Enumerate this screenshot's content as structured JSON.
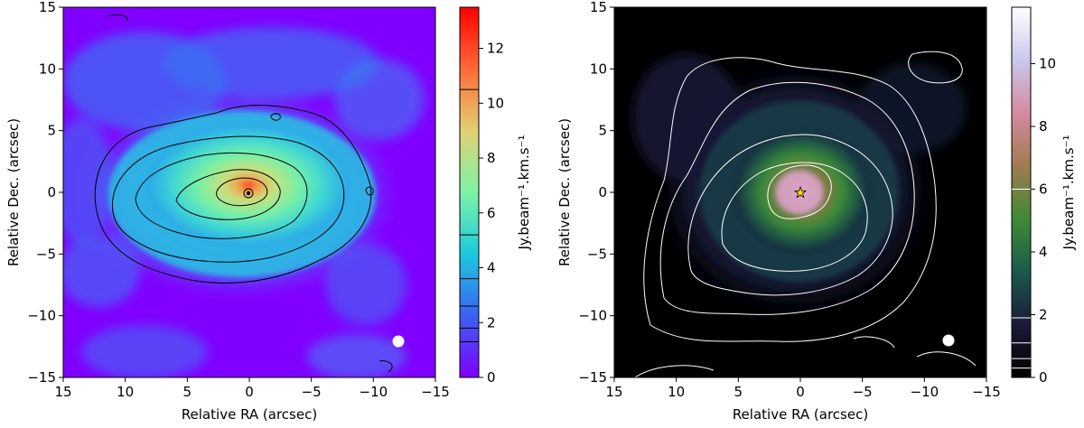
{
  "chart_data": [
    {
      "type": "heatmap",
      "xlabel": "Relative RA (arcsec)",
      "ylabel": "Relative Dec. (arcsec)",
      "xlim": [
        15,
        -15
      ],
      "ylim": [
        -15,
        15
      ],
      "x_ticks": [
        "15",
        "10",
        "5",
        "0",
        "−5",
        "−10",
        "−15"
      ],
      "y_ticks": [
        "−15",
        "−10",
        "−5",
        "0",
        "5",
        "10",
        "15"
      ],
      "x_tick_values": [
        15,
        10,
        5,
        0,
        -5,
        -10,
        -15
      ],
      "y_tick_values": [
        -15,
        -10,
        -5,
        0,
        5,
        10,
        15
      ],
      "colorbar": {
        "label": "Jy.beam⁻¹.km.s⁻¹",
        "range": [
          0,
          13.5
        ],
        "ticks": [
          "0",
          "2",
          "4",
          "6",
          "8",
          "10",
          "12"
        ],
        "tick_values": [
          0,
          2,
          4,
          6,
          8,
          10,
          12
        ],
        "contour_levels": [
          1.3,
          1.8,
          2.6,
          3.6,
          5.2,
          10.5
        ],
        "colormap": "rainbow",
        "colors": [
          "#8000ff",
          "#3a62f3",
          "#1cc9dd",
          "#7ef3a6",
          "#e1d073",
          "#ff6a38",
          "#ff0000"
        ]
      },
      "contour_color": "#000000",
      "beam_color": "#ffffff",
      "beam_position": [
        -12,
        -11.8
      ]
    },
    {
      "type": "heatmap",
      "xlabel": "Relative RA (arcsec)",
      "ylabel": "Relative Dec. (arcsec)",
      "xlim": [
        15,
        -15
      ],
      "ylim": [
        -15,
        15
      ],
      "x_ticks": [
        "15",
        "10",
        "5",
        "0",
        "−5",
        "−10",
        "−15"
      ],
      "y_ticks": [
        "−15",
        "−10",
        "−5",
        "0",
        "5",
        "10",
        "15"
      ],
      "x_tick_values": [
        15,
        10,
        5,
        0,
        -5,
        -10,
        -15
      ],
      "y_tick_values": [
        -15,
        -10,
        -5,
        0,
        5,
        10,
        15
      ],
      "colorbar": {
        "label": "Jy.beam⁻¹.km.s⁻¹",
        "range": [
          0,
          11.8
        ],
        "ticks": [
          "0",
          "2",
          "4",
          "6",
          "8",
          "10"
        ],
        "tick_values": [
          0,
          2,
          4,
          6,
          8,
          10
        ],
        "contour_levels": [
          0.3,
          0.6,
          1.1,
          1.9,
          6.0
        ],
        "colormap": "cubehelix",
        "colors": [
          "#000000",
          "#1b1a3a",
          "#1a5a4a",
          "#3f8a36",
          "#a07b4f",
          "#d68aa0",
          "#c9c8ec",
          "#ffffff"
        ]
      },
      "contour_color": "#ffffff",
      "beam_color": "#ffffff",
      "beam_position": [
        -12,
        -11.8
      ],
      "star_marker": {
        "x": 0,
        "y": 0,
        "color": "#ffd700"
      }
    }
  ]
}
